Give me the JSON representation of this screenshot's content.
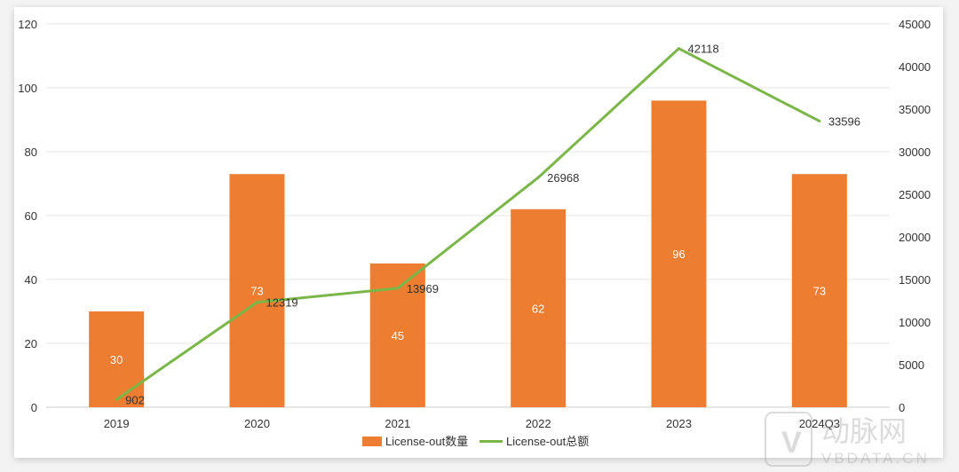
{
  "chart_data": {
    "type": "bar+line",
    "categories": [
      "2019",
      "2020",
      "2021",
      "2022",
      "2023",
      "2024Q3"
    ],
    "series": [
      {
        "name": "License-out数量",
        "type": "bar",
        "axis": "left",
        "color": "#ED7D31",
        "values": [
          30,
          73,
          45,
          62,
          96,
          73
        ]
      },
      {
        "name": "License-out总额",
        "type": "line",
        "axis": "right",
        "color": "#7AB648",
        "values": [
          902,
          12319,
          13969,
          26968,
          42118,
          33596
        ]
      }
    ],
    "y_left": {
      "range": [
        0,
        120
      ],
      "ticks": [
        0,
        20,
        40,
        60,
        80,
        100,
        120
      ]
    },
    "y_right": {
      "range": [
        0,
        45000
      ],
      "ticks": [
        0,
        5000,
        10000,
        15000,
        20000,
        25000,
        30000,
        35000,
        40000,
        45000
      ]
    },
    "grid": true,
    "legend": "bottom-center"
  },
  "watermark": {
    "cn": "动脉网",
    "en": "VBDATA.CN"
  }
}
